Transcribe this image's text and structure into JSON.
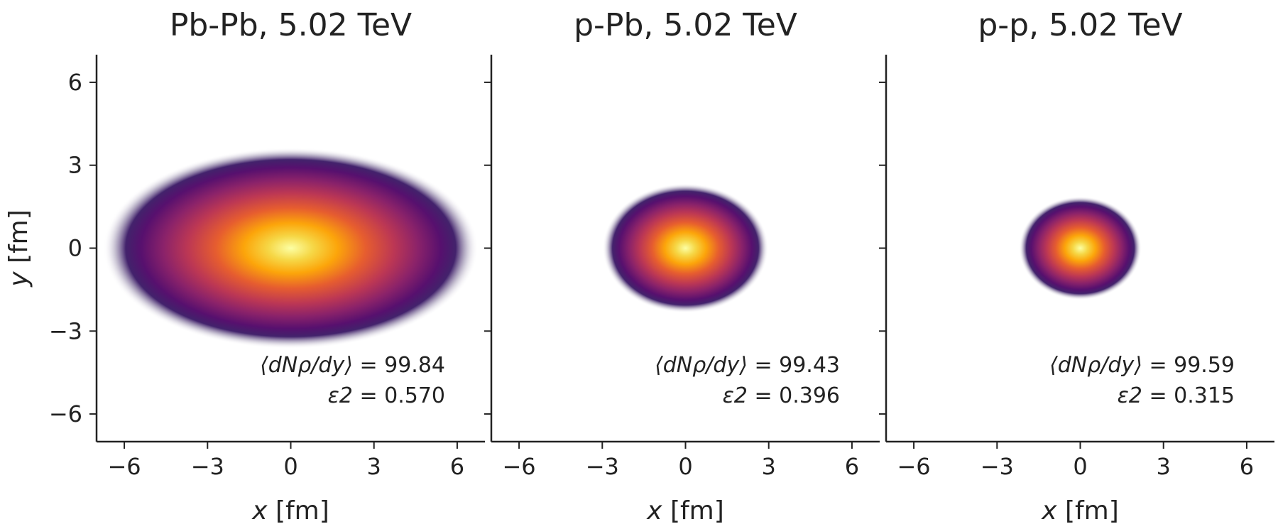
{
  "chart_data": [
    {
      "type": "heatmap",
      "title": "Pb-Pb, 5.02 TeV",
      "xlabel": "x [fm]",
      "ylabel": "y [fm]",
      "xlim": [
        -7,
        7
      ],
      "ylim": [
        -7,
        7
      ],
      "xticks": [
        -6,
        -3,
        0,
        3,
        6
      ],
      "yticks": [
        6,
        3,
        0,
        -3,
        -6
      ],
      "colormap": "inferno",
      "density_profile": {
        "center": [
          0,
          0
        ],
        "sigma_x": 2.6,
        "sigma_y": 1.4
      },
      "annotations": {
        "line1_label": "⟨dNρ/dy⟩",
        "line1_value": "= 99.84",
        "line2_label": "ε2",
        "line2_value": "= 0.570"
      }
    },
    {
      "type": "heatmap",
      "title": "p-Pb, 5.02 TeV",
      "xlabel": "x [fm]",
      "ylabel": "",
      "xlim": [
        -7,
        7
      ],
      "ylim": [
        -7,
        7
      ],
      "xticks": [
        -6,
        -3,
        0,
        3,
        6
      ],
      "yticks": [
        6,
        3,
        0,
        -3,
        -6
      ],
      "colormap": "inferno",
      "density_profile": {
        "center": [
          0,
          0
        ],
        "sigma_x": 1.15,
        "sigma_y": 0.9
      },
      "annotations": {
        "line1_label": "⟨dNρ/dy⟩",
        "line1_value": "= 99.43",
        "line2_label": "ε2",
        "line2_value": "= 0.396"
      }
    },
    {
      "type": "heatmap",
      "title": "p-p, 5.02 TeV",
      "xlabel": "x [fm]",
      "ylabel": "",
      "xlim": [
        -7,
        7
      ],
      "ylim": [
        -7,
        7
      ],
      "xticks": [
        -6,
        -3,
        0,
        3,
        6
      ],
      "yticks": [
        6,
        3,
        0,
        -3,
        -6
      ],
      "colormap": "inferno",
      "density_profile": {
        "center": [
          0,
          0
        ],
        "sigma_x": 0.85,
        "sigma_y": 0.72
      },
      "annotations": {
        "line1_label": "⟨dNρ/dy⟩",
        "line1_value": "= 99.59",
        "line2_label": "ε2",
        "line2_value": "= 0.315"
      }
    }
  ]
}
